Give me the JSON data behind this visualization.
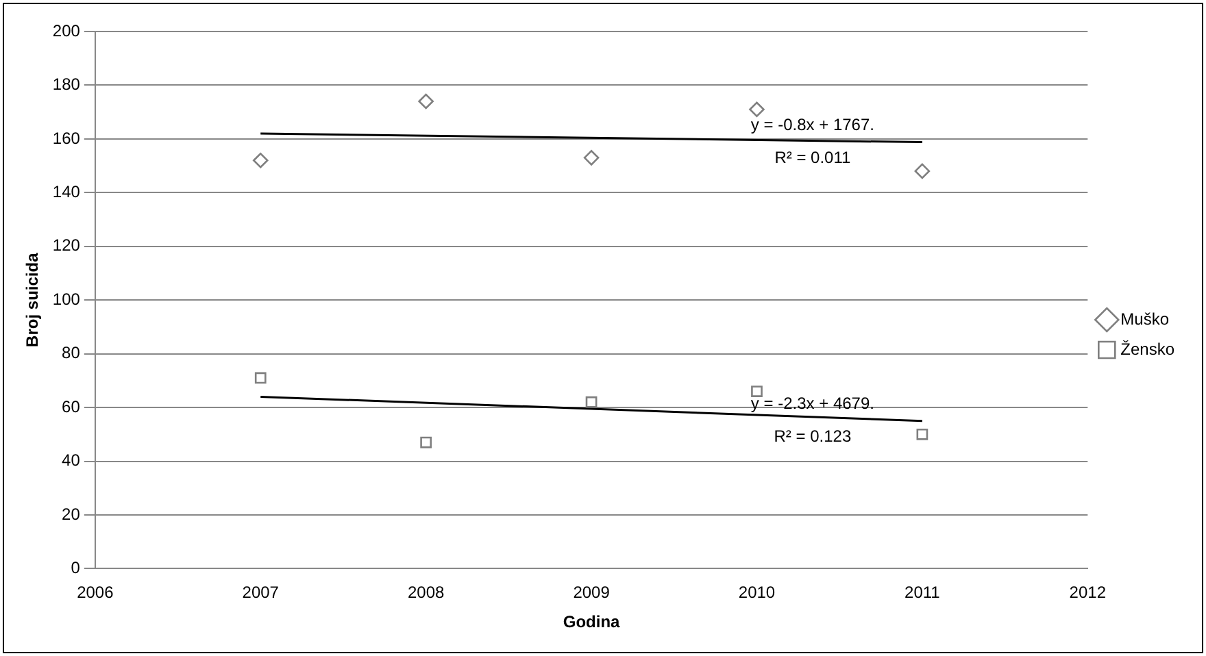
{
  "chart_data": {
    "type": "scatter",
    "xlabel": "Godina",
    "ylabel": "Broj suicida",
    "xlim": [
      2006,
      2012
    ],
    "xticks": [
      2006,
      2007,
      2008,
      2009,
      2010,
      2011,
      2012
    ],
    "ylim": [
      0,
      200
    ],
    "yticks": [
      0,
      20,
      40,
      60,
      80,
      100,
      120,
      140,
      160,
      180,
      200
    ],
    "grid": "y",
    "legend": "right",
    "series": [
      {
        "name": "Muško",
        "color": "#7f7f7f",
        "marker": "diamond",
        "x": [
          2007,
          2008,
          2009,
          2010,
          2011
        ],
        "values": [
          152,
          174,
          153,
          171,
          148
        ]
      },
      {
        "name": "Žensko",
        "color": "#7f7f7f",
        "marker": "square",
        "x": [
          2007,
          2008,
          2009,
          2010,
          2011
        ],
        "values": [
          71,
          47,
          62,
          66,
          50
        ]
      },
      {
        "type": "line",
        "color": "#000000",
        "marker": "none",
        "x": [
          2007,
          2011
        ],
        "values": [
          162,
          158.8
        ]
      },
      {
        "type": "line",
        "color": "#000000",
        "marker": "none",
        "x": [
          2007,
          2011
        ],
        "values": [
          64,
          55
        ]
      }
    ],
    "annotations": [
      "y = -0.8x + 1767.",
      "R² = 0.011",
      "y = -2.3x + 4679.",
      "R² = 0.123"
    ]
  }
}
